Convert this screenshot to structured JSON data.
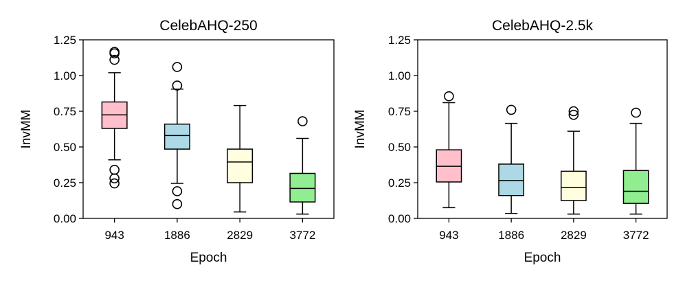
{
  "chart_data": [
    {
      "type": "box",
      "title": "CelebAHQ-250",
      "xlabel": "Epoch",
      "ylabel": "InvMM",
      "categories": [
        "943",
        "1886",
        "2829",
        "3772"
      ],
      "ylim": [
        0.0,
        1.25
      ],
      "yticks": [
        "0.00",
        "0.25",
        "0.50",
        "0.75",
        "1.00",
        "1.25"
      ],
      "grid": false,
      "boxes": [
        {
          "category": "943",
          "color": "#ffc0cb",
          "whisker_low": 0.41,
          "q1": 0.63,
          "median": 0.725,
          "q3": 0.815,
          "whisker_high": 1.02,
          "outliers": [
            1.165,
            1.155,
            1.11,
            0.34,
            0.28,
            0.245
          ]
        },
        {
          "category": "1886",
          "color": "#add8e6",
          "whisker_low": 0.245,
          "q1": 0.485,
          "median": 0.58,
          "q3": 0.66,
          "whisker_high": 0.905,
          "outliers": [
            1.06,
            0.93,
            0.19,
            0.1
          ]
        },
        {
          "category": "2829",
          "color": "#ffffe0",
          "whisker_low": 0.045,
          "q1": 0.25,
          "median": 0.395,
          "q3": 0.485,
          "whisker_high": 0.79,
          "outliers": []
        },
        {
          "category": "3772",
          "color": "#90ee90",
          "whisker_low": 0.03,
          "q1": 0.115,
          "median": 0.21,
          "q3": 0.315,
          "whisker_high": 0.56,
          "outliers": [
            0.68
          ]
        }
      ]
    },
    {
      "type": "box",
      "title": "CelebAHQ-2.5k",
      "xlabel": "Epoch",
      "ylabel": "InvMM",
      "categories": [
        "943",
        "1886",
        "2829",
        "3772"
      ],
      "ylim": [
        0.0,
        1.25
      ],
      "yticks": [
        "0.00",
        "0.25",
        "0.50",
        "0.75",
        "1.00",
        "1.25"
      ],
      "grid": false,
      "boxes": [
        {
          "category": "943",
          "color": "#ffc0cb",
          "whisker_low": 0.075,
          "q1": 0.255,
          "median": 0.365,
          "q3": 0.48,
          "whisker_high": 0.81,
          "outliers": [
            0.855
          ]
        },
        {
          "category": "1886",
          "color": "#add8e6",
          "whisker_low": 0.035,
          "q1": 0.16,
          "median": 0.265,
          "q3": 0.38,
          "whisker_high": 0.665,
          "outliers": [
            0.76
          ]
        },
        {
          "category": "2829",
          "color": "#ffffe0",
          "whisker_low": 0.03,
          "q1": 0.125,
          "median": 0.215,
          "q3": 0.33,
          "whisker_high": 0.61,
          "outliers": [
            0.75,
            0.725
          ]
        },
        {
          "category": "3772",
          "color": "#90ee90",
          "whisker_low": 0.03,
          "q1": 0.105,
          "median": 0.19,
          "q3": 0.335,
          "whisker_high": 0.665,
          "outliers": [
            0.74
          ]
        }
      ]
    }
  ]
}
